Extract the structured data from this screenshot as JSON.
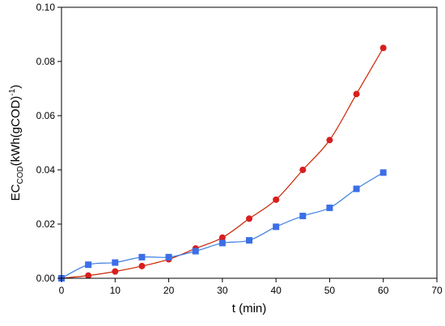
{
  "chart_data": {
    "type": "line",
    "xlabel": "t (min)",
    "ylabel": {
      "base": "EC",
      "subscript": "COD",
      "mid": "(kWh(gCOD)",
      "superscript": "-1",
      "end": ")"
    },
    "xlim": [
      0,
      70
    ],
    "ylim": [
      0,
      0.1
    ],
    "x_ticks": [
      0,
      10,
      20,
      30,
      40,
      50,
      60,
      70
    ],
    "y_ticks": [
      0.0,
      0.02,
      0.04,
      0.06,
      0.08,
      0.1
    ],
    "x_tick_labels": [
      "0",
      "10",
      "20",
      "30",
      "40",
      "50",
      "60",
      "70"
    ],
    "y_tick_labels": [
      "0.00",
      "0.02",
      "0.04",
      "0.06",
      "0.08",
      "0.10"
    ],
    "grid": false,
    "series": [
      {
        "marker": "circle",
        "line_color": "#cc2200",
        "marker_color": "#d81e1e",
        "x": [
          0,
          5,
          10,
          15,
          20,
          25,
          30,
          35,
          40,
          45,
          50,
          55,
          60
        ],
        "y": [
          0.0,
          0.001,
          0.0025,
          0.0045,
          0.007,
          0.011,
          0.015,
          0.022,
          0.029,
          0.04,
          0.051,
          0.068,
          0.085
        ]
      },
      {
        "marker": "square",
        "line_color": "#3f7fe0",
        "marker_color": "#3c6ee8",
        "x": [
          0,
          5,
          10,
          15,
          20,
          25,
          30,
          35,
          40,
          45,
          50,
          55,
          60
        ],
        "y": [
          0.0,
          0.005,
          0.0058,
          0.0078,
          0.0078,
          0.01,
          0.013,
          0.014,
          0.019,
          0.023,
          0.026,
          0.033,
          0.039
        ]
      }
    ]
  }
}
